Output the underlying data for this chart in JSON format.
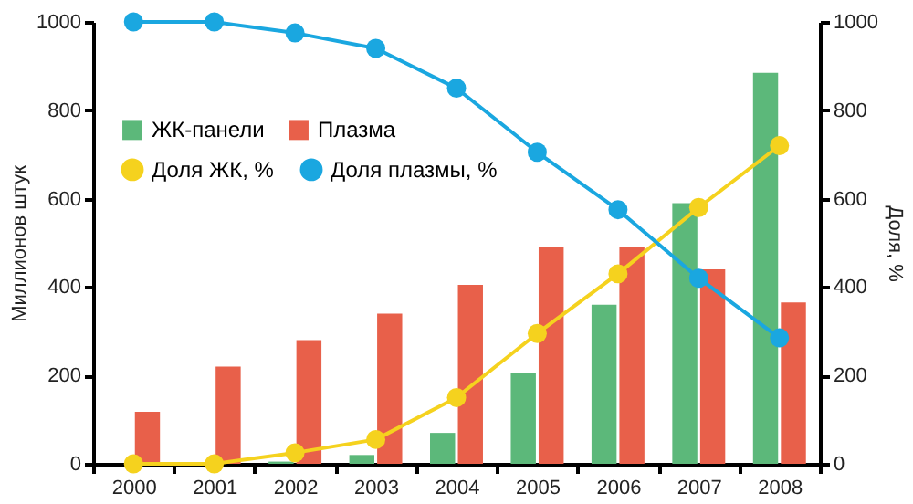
{
  "chart_data": {
    "type": "bar",
    "ylabel": "Миллионов штук",
    "y2label": "Доля, %",
    "categories": [
      "2000",
      "2001",
      "2002",
      "2003",
      "2004",
      "2005",
      "2006",
      "2007",
      "2008"
    ],
    "series": [
      {
        "name": "ЖК-панели",
        "color": "#5cb87a",
        "values": [
          0,
          0,
          5,
          20,
          70,
          205,
          360,
          590,
          885
        ]
      },
      {
        "name": "Плазма",
        "color": "#e8604a",
        "values": [
          118,
          220,
          280,
          340,
          405,
          490,
          490,
          440,
          365
        ]
      },
      {
        "name": "Доля ЖК, %",
        "type": "line",
        "axis": "y2",
        "color": "#f5d21e",
        "values": [
          0,
          0,
          25,
          55,
          150,
          295,
          430,
          580,
          720
        ]
      },
      {
        "name": "Доля плазмы, %",
        "type": "line",
        "axis": "y2",
        "color": "#1aa7e0",
        "values": [
          1000,
          1000,
          975,
          940,
          850,
          705,
          575,
          420,
          285
        ]
      }
    ],
    "ylim": [
      0,
      1000
    ],
    "yticks": [
      0,
      200,
      400,
      600,
      800,
      1000
    ],
    "y2lim": [
      0,
      1000
    ],
    "y2ticks": [
      0,
      200,
      400,
      600,
      800,
      1000
    ],
    "legend": "top left",
    "marker": "circle",
    "grid": false
  }
}
